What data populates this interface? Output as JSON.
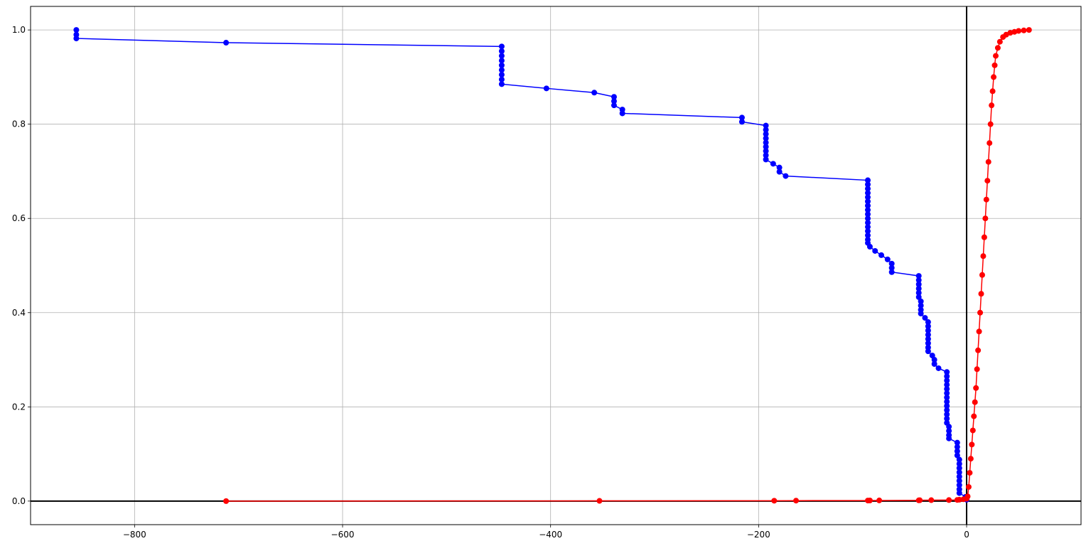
{
  "chart_data": {
    "type": "line",
    "title": "",
    "xlabel": "",
    "ylabel": "",
    "xlim": [
      -900,
      110
    ],
    "ylim": [
      -0.05,
      1.05
    ],
    "grid": true,
    "legend": "none",
    "x_ticks": [
      -800,
      -600,
      -400,
      -200,
      0
    ],
    "x_tick_labels": [
      "−800",
      "−600",
      "−400",
      "−200",
      "0"
    ],
    "y_ticks": [
      0.0,
      0.2,
      0.4,
      0.6,
      0.8,
      1.0
    ],
    "y_tick_labels": [
      "0.0",
      "0.2",
      "0.4",
      "0.6",
      "0.8",
      "1.0"
    ],
    "reference_lines": {
      "x": 0,
      "y": 0
    },
    "series": [
      {
        "color": "#0000ff",
        "marker": "circle",
        "points": [
          [
            -856,
            1.0
          ],
          [
            -856,
            0.99
          ],
          [
            -856,
            0.982
          ],
          [
            -712,
            0.973
          ],
          [
            -447,
            0.965
          ],
          [
            -447,
            0.955
          ],
          [
            -447,
            0.945
          ],
          [
            -447,
            0.935
          ],
          [
            -447,
            0.925
          ],
          [
            -447,
            0.915
          ],
          [
            -447,
            0.905
          ],
          [
            -447,
            0.895
          ],
          [
            -447,
            0.885
          ],
          [
            -404,
            0.876
          ],
          [
            -358,
            0.867
          ],
          [
            -339,
            0.858
          ],
          [
            -339,
            0.849
          ],
          [
            -339,
            0.84
          ],
          [
            -331,
            0.831
          ],
          [
            -331,
            0.823
          ],
          [
            -216,
            0.814
          ],
          [
            -216,
            0.805
          ],
          [
            -193,
            0.797
          ],
          [
            -193,
            0.788
          ],
          [
            -193,
            0.779
          ],
          [
            -193,
            0.77
          ],
          [
            -193,
            0.761
          ],
          [
            -193,
            0.752
          ],
          [
            -193,
            0.743
          ],
          [
            -193,
            0.734
          ],
          [
            -193,
            0.725
          ],
          [
            -186,
            0.716
          ],
          [
            -180,
            0.708
          ],
          [
            -180,
            0.699
          ],
          [
            -174,
            0.69
          ],
          [
            -95,
            0.681
          ],
          [
            -95,
            0.672
          ],
          [
            -95,
            0.663
          ],
          [
            -95,
            0.654
          ],
          [
            -95,
            0.645
          ],
          [
            -95,
            0.636
          ],
          [
            -95,
            0.627
          ],
          [
            -95,
            0.618
          ],
          [
            -95,
            0.609
          ],
          [
            -95,
            0.6
          ],
          [
            -95,
            0.591
          ],
          [
            -95,
            0.582
          ],
          [
            -95,
            0.573
          ],
          [
            -95,
            0.564
          ],
          [
            -95,
            0.555
          ],
          [
            -95,
            0.548
          ],
          [
            -93,
            0.54
          ],
          [
            -88,
            0.531
          ],
          [
            -82,
            0.522
          ],
          [
            -76,
            0.513
          ],
          [
            -72,
            0.504
          ],
          [
            -72,
            0.495
          ],
          [
            -72,
            0.486
          ],
          [
            -46,
            0.478
          ],
          [
            -46,
            0.469
          ],
          [
            -46,
            0.46
          ],
          [
            -46,
            0.451
          ],
          [
            -46,
            0.442
          ],
          [
            -46,
            0.433
          ],
          [
            -44,
            0.424
          ],
          [
            -44,
            0.415
          ],
          [
            -44,
            0.406
          ],
          [
            -44,
            0.398
          ],
          [
            -40,
            0.389
          ],
          [
            -37,
            0.38
          ],
          [
            -37,
            0.371
          ],
          [
            -37,
            0.362
          ],
          [
            -37,
            0.353
          ],
          [
            -37,
            0.344
          ],
          [
            -37,
            0.335
          ],
          [
            -37,
            0.326
          ],
          [
            -37,
            0.318
          ],
          [
            -33,
            0.309
          ],
          [
            -31,
            0.3
          ],
          [
            -31,
            0.291
          ],
          [
            -27,
            0.282
          ],
          [
            -19,
            0.274
          ],
          [
            -19,
            0.265
          ],
          [
            -19,
            0.256
          ],
          [
            -19,
            0.247
          ],
          [
            -19,
            0.238
          ],
          [
            -19,
            0.229
          ],
          [
            -19,
            0.22
          ],
          [
            -19,
            0.211
          ],
          [
            -19,
            0.202
          ],
          [
            -19,
            0.193
          ],
          [
            -19,
            0.184
          ],
          [
            -19,
            0.175
          ],
          [
            -19,
            0.166
          ],
          [
            -17,
            0.158
          ],
          [
            -17,
            0.149
          ],
          [
            -17,
            0.14
          ],
          [
            -17,
            0.133
          ],
          [
            -9,
            0.124
          ],
          [
            -9,
            0.115
          ],
          [
            -9,
            0.106
          ],
          [
            -9,
            0.097
          ],
          [
            -7,
            0.088
          ],
          [
            -7,
            0.079
          ],
          [
            -7,
            0.07
          ],
          [
            -7,
            0.061
          ],
          [
            -7,
            0.052
          ],
          [
            -7,
            0.043
          ],
          [
            -7,
            0.034
          ],
          [
            -7,
            0.025
          ],
          [
            -7,
            0.017
          ],
          [
            -1,
            0.009
          ],
          [
            0,
            0.003
          ]
        ]
      },
      {
        "color": "#ff0000",
        "marker": "circle",
        "points": [
          [
            -712,
            0.0
          ],
          [
            -353,
            0.0005
          ],
          [
            -185,
            0.0008
          ],
          [
            -164,
            0.001
          ],
          [
            -95,
            0.0012
          ],
          [
            -93,
            0.0013
          ],
          [
            -84,
            0.0014
          ],
          [
            -46,
            0.0016
          ],
          [
            -45,
            0.0018
          ],
          [
            -34,
            0.002
          ],
          [
            -17,
            0.0022
          ],
          [
            -9,
            0.0025
          ],
          [
            -7,
            0.003
          ],
          [
            -3,
            0.004
          ],
          [
            0,
            0.005
          ],
          [
            1,
            0.01
          ],
          [
            2,
            0.03
          ],
          [
            3,
            0.06
          ],
          [
            4,
            0.09
          ],
          [
            5,
            0.12
          ],
          [
            6,
            0.15
          ],
          [
            7,
            0.18
          ],
          [
            8,
            0.21
          ],
          [
            9,
            0.24
          ],
          [
            10,
            0.28
          ],
          [
            11,
            0.32
          ],
          [
            12,
            0.36
          ],
          [
            13,
            0.4
          ],
          [
            14,
            0.44
          ],
          [
            15,
            0.48
          ],
          [
            16,
            0.52
          ],
          [
            17,
            0.56
          ],
          [
            18,
            0.6
          ],
          [
            19,
            0.64
          ],
          [
            20,
            0.68
          ],
          [
            21,
            0.72
          ],
          [
            22,
            0.76
          ],
          [
            23,
            0.8
          ],
          [
            24,
            0.84
          ],
          [
            25,
            0.87
          ],
          [
            26,
            0.9
          ],
          [
            27,
            0.925
          ],
          [
            28,
            0.945
          ],
          [
            30,
            0.962
          ],
          [
            32,
            0.975
          ],
          [
            35,
            0.985
          ],
          [
            38,
            0.99
          ],
          [
            42,
            0.994
          ],
          [
            46,
            0.996
          ],
          [
            50,
            0.998
          ],
          [
            55,
            0.999
          ],
          [
            60,
            1.0
          ]
        ]
      }
    ]
  }
}
